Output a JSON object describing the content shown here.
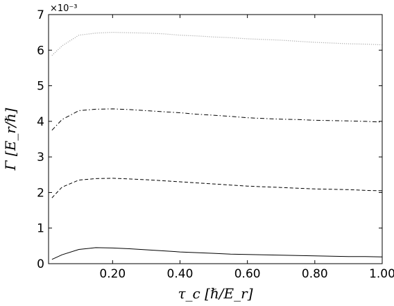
{
  "chart_data": {
    "type": "line",
    "title": "",
    "xlabel": "τ_c [ℏ/E_r]",
    "ylabel": "Γ [E_r/ℏ]",
    "xlim": [
      0.01,
      1.0
    ],
    "ylim": [
      0,
      7
    ],
    "y_multiplier": "×10⁻³",
    "grid": false,
    "legend": "none",
    "x_ticks": [
      0.2,
      0.4,
      0.6,
      0.8,
      1.0
    ],
    "x_tick_labels": [
      "0.20",
      "0.40",
      "0.60",
      "0.80",
      "1.00"
    ],
    "y_ticks": [
      0,
      1,
      2,
      3,
      4,
      5,
      6,
      7
    ],
    "y_tick_labels": [
      "0",
      "1",
      "2",
      "3",
      "4",
      "5",
      "6",
      "7"
    ],
    "x": [
      0.02,
      0.05,
      0.1,
      0.15,
      0.2,
      0.25,
      0.3,
      0.35,
      0.4,
      0.45,
      0.5,
      0.55,
      0.6,
      0.65,
      0.7,
      0.75,
      0.8,
      0.85,
      0.9,
      0.95,
      1.0
    ],
    "series": [
      {
        "style": "dotted",
        "color": "#9a9a9a",
        "values": [
          5.85,
          6.12,
          6.42,
          6.48,
          6.5,
          6.49,
          6.48,
          6.46,
          6.42,
          6.4,
          6.37,
          6.35,
          6.32,
          6.3,
          6.28,
          6.25,
          6.22,
          6.2,
          6.18,
          6.17,
          6.15
        ]
      },
      {
        "style": "dashdot",
        "color": "#000000",
        "values": [
          3.75,
          4.05,
          4.3,
          4.34,
          4.35,
          4.33,
          4.3,
          4.27,
          4.24,
          4.2,
          4.17,
          4.14,
          4.1,
          4.08,
          4.06,
          4.05,
          4.03,
          4.02,
          4.01,
          4.0,
          3.98
        ]
      },
      {
        "style": "dashed",
        "color": "#000000",
        "values": [
          1.85,
          2.15,
          2.35,
          2.39,
          2.4,
          2.38,
          2.36,
          2.33,
          2.3,
          2.27,
          2.24,
          2.21,
          2.18,
          2.16,
          2.14,
          2.12,
          2.1,
          2.09,
          2.08,
          2.06,
          2.05
        ]
      },
      {
        "style": "solid",
        "color": "#000000",
        "values": [
          0.12,
          0.25,
          0.4,
          0.45,
          0.44,
          0.42,
          0.39,
          0.36,
          0.33,
          0.31,
          0.29,
          0.27,
          0.26,
          0.25,
          0.24,
          0.23,
          0.22,
          0.21,
          0.2,
          0.2,
          0.19
        ]
      }
    ]
  }
}
